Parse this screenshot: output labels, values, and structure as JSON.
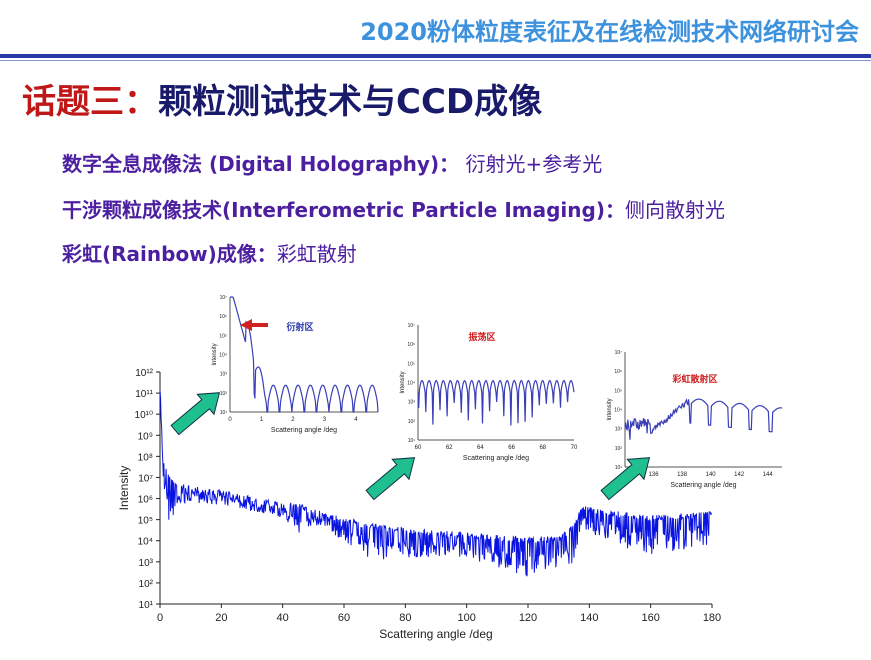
{
  "header": {
    "conference": "2020粉体粒度表征及在线检测技术网络研讨会",
    "topic_label": "话题三：",
    "topic_title": "颗粒测试技术与CCD成像"
  },
  "bullets": [
    {
      "term": "数字全息成像法 (Digital Holography)：",
      "desc": "衍射光+参考光"
    },
    {
      "term": "干涉颗粒成像技术(Interferometric Particle Imaging)：",
      "desc": "侧向散射光"
    },
    {
      "term": "彩虹(Rainbow)成像：",
      "desc": "彩虹散射"
    }
  ],
  "colors": {
    "curve": "#0a14e0",
    "inset_curve": "#3a3fb8",
    "arrow": "#1fbf8f",
    "annotation": "#d02020"
  },
  "chart_data": [
    {
      "type": "line",
      "title": "",
      "xlabel": "Scattering angle /deg",
      "ylabel": "Intensity",
      "xlim": [
        0,
        180
      ],
      "ylim_log10": [
        1,
        12
      ],
      "xticks": [
        "0",
        "20",
        "40",
        "60",
        "80",
        "100",
        "120",
        "140",
        "160",
        "180"
      ],
      "yticks": [
        "10¹",
        "10²",
        "10³",
        "10⁴",
        "10⁵",
        "10⁶",
        "10⁷",
        "10⁸",
        "10⁹",
        "10¹⁰",
        "10¹¹",
        "10¹²"
      ],
      "series": [
        {
          "name": "Intensity",
          "x": [
            0,
            1,
            3,
            5,
            10,
            20,
            30,
            40,
            45,
            50,
            60,
            70,
            80,
            100,
            120,
            130,
            135,
            138,
            140,
            160,
            180
          ],
          "log10_upper": [
            11.4,
            8,
            7.1,
            6.8,
            6.6,
            6.4,
            6.1,
            5.8,
            5.8,
            5.5,
            5.1,
            4.8,
            4.6,
            4.4,
            4.2,
            4.2,
            4.8,
            5.8,
            5.6,
            5.2,
            5.4
          ],
          "log10_lower": [
            11,
            7,
            4.3,
            5.6,
            5.8,
            5.7,
            5.4,
            5.1,
            4.2,
            4.8,
            4,
            3,
            3.2,
            3.2,
            2.3,
            2.6,
            2.8,
            4.3,
            4.2,
            3.3,
            3.8
          ]
        }
      ]
    },
    {
      "type": "line",
      "annotation": "衍射区",
      "xlabel": "Scattering angle /deg",
      "ylabel": "Intensity",
      "xlim": [
        0,
        4.7
      ],
      "xticks": [
        "0",
        "1",
        "2",
        "3",
        "4"
      ]
    },
    {
      "type": "line",
      "annotation": "振荡区",
      "xlabel": "Scattering angle /deg",
      "ylabel": "Intensity",
      "xlim": [
        60,
        70
      ],
      "xticks": [
        "60",
        "62",
        "64",
        "66",
        "68",
        "70"
      ]
    },
    {
      "type": "line",
      "annotation": "彩虹散射区",
      "xlabel": "Scattering angle /deg",
      "ylabel": "Intensity",
      "xlim": [
        134,
        145
      ],
      "xticks": [
        "136",
        "138",
        "140",
        "142",
        "144"
      ]
    }
  ]
}
